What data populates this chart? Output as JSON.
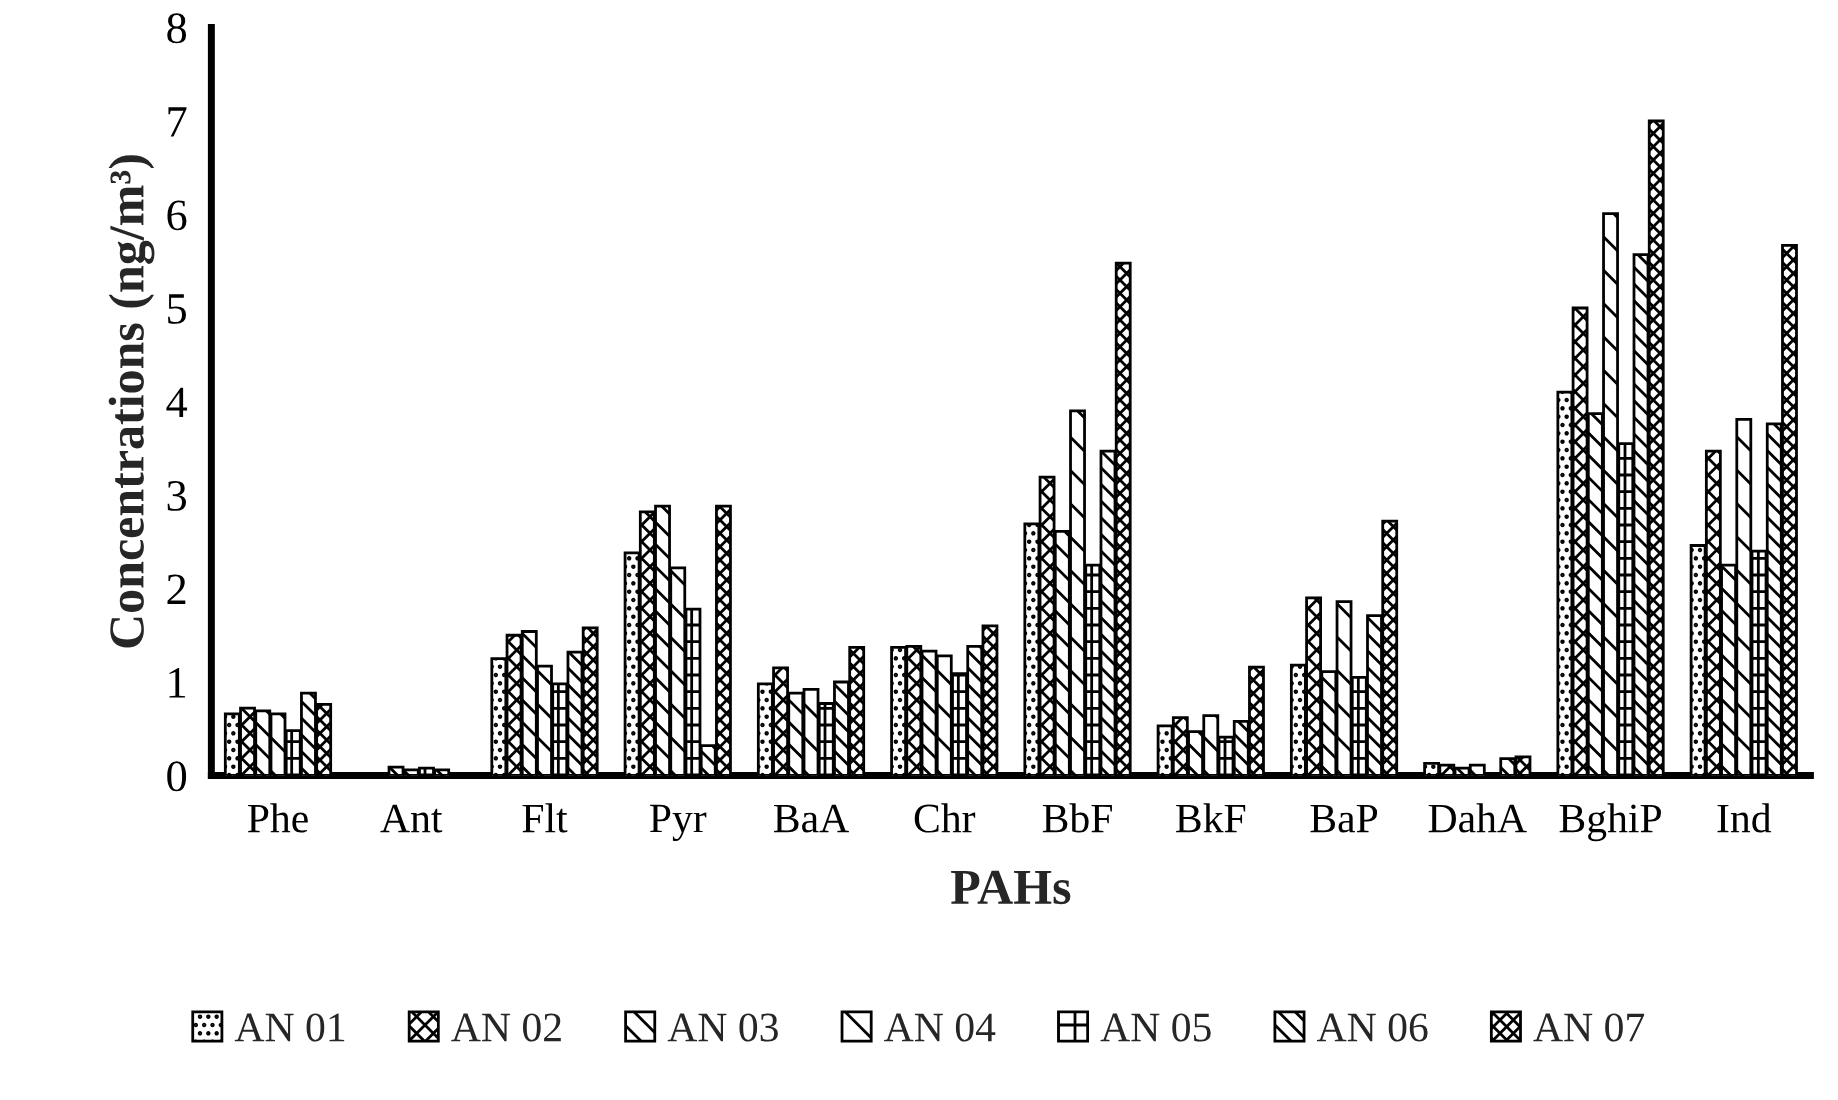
{
  "chart_data": {
    "type": "bar",
    "xlabel": "PAHs",
    "ylabel": "Concentrations (ng/m³)",
    "categories": [
      "Phe",
      "Ant",
      "Flt",
      "Pyr",
      "BaA",
      "Chr",
      "BbF",
      "BkF",
      "BaP",
      "DahA",
      "BghiP",
      "Ind"
    ],
    "series": [
      {
        "name": "AN 01",
        "color": "#000000",
        "values": [
          0.66,
          null,
          1.25,
          2.38,
          0.98,
          1.37,
          2.69,
          0.53,
          1.18,
          0.13,
          4.1,
          2.46
        ]
      },
      {
        "name": "AN 02",
        "color": "#000000",
        "values": [
          0.72,
          null,
          1.5,
          2.82,
          1.15,
          1.38,
          3.19,
          0.62,
          1.9,
          0.11,
          5.0,
          3.47
        ]
      },
      {
        "name": "AN 03",
        "color": "#000000",
        "values": [
          0.69,
          0.09,
          1.54,
          2.88,
          0.88,
          1.33,
          2.61,
          0.47,
          1.11,
          0.08,
          3.87,
          2.25
        ]
      },
      {
        "name": "AN 04",
        "color": "#000000",
        "values": [
          0.66,
          0.06,
          1.17,
          2.22,
          0.92,
          1.28,
          3.9,
          0.64,
          1.86,
          0.11,
          6.01,
          3.81
        ]
      },
      {
        "name": "AN 05",
        "color": "#000000",
        "values": [
          0.48,
          0.08,
          0.98,
          1.78,
          0.77,
          1.09,
          2.25,
          0.41,
          1.05,
          null,
          3.55,
          2.4
        ]
      },
      {
        "name": "AN 06",
        "color": "#000000",
        "values": [
          0.88,
          0.06,
          1.32,
          0.32,
          1.0,
          1.38,
          3.47,
          0.58,
          1.71,
          0.18,
          5.57,
          3.76
        ]
      },
      {
        "name": "AN 07",
        "color": "#000000",
        "values": [
          0.76,
          null,
          1.58,
          2.88,
          1.37,
          1.6,
          5.48,
          1.16,
          2.72,
          0.2,
          7.0,
          5.67
        ]
      }
    ],
    "ylim": [
      0,
      8
    ],
    "yticks": [
      0,
      1,
      2,
      3,
      4,
      5,
      6,
      7,
      8
    ],
    "grid": false,
    "legend": "bottom"
  }
}
